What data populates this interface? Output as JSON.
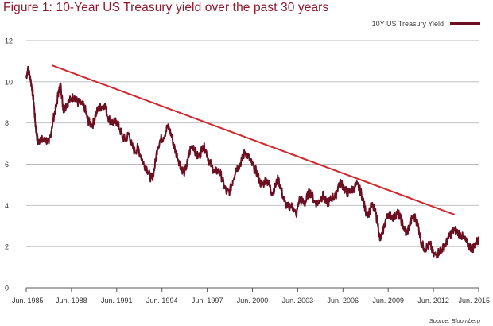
{
  "title": "Figure 1: 10-Year US Treasury yield over the past 30 years",
  "source": "Source: Bloomberg",
  "colors": {
    "series": "#6b0f21",
    "trend": "#d02a2f",
    "title": "#8a1c2e",
    "grid": "#b8b8b8"
  },
  "chart_data": {
    "type": "line",
    "title": "Figure 1: 10-Year US Treasury yield over the past 30 years",
    "xlabel": "",
    "ylabel": "",
    "ylim": [
      0,
      12
    ],
    "xlim": [
      1985.5,
      2015.5
    ],
    "yticks": [
      0,
      2,
      4,
      6,
      8,
      10,
      12
    ],
    "xticks": [
      {
        "x": 1985.5,
        "label": "Jun. 1985"
      },
      {
        "x": 1988.5,
        "label": "Jun. 1988"
      },
      {
        "x": 1991.5,
        "label": "Jun. 1991"
      },
      {
        "x": 1994.5,
        "label": "Jun. 1994"
      },
      {
        "x": 1997.5,
        "label": "Jun. 1997"
      },
      {
        "x": 2000.5,
        "label": "Jun. 2000"
      },
      {
        "x": 2003.5,
        "label": "Jun. 2003"
      },
      {
        "x": 2006.5,
        "label": "Jun. 2006"
      },
      {
        "x": 2009.5,
        "label": "Jun. 2009"
      },
      {
        "x": 2012.5,
        "label": "Jun. 2012"
      },
      {
        "x": 2015.5,
        "label": "Jun. 2015"
      }
    ],
    "grid": true,
    "legend": "top-right",
    "series": [
      {
        "name": "10Y US Treasury Yield",
        "x": [
          1985.5,
          1985.6,
          1985.75,
          1985.9,
          1986.0,
          1986.1,
          1986.2,
          1986.3,
          1986.45,
          1986.6,
          1986.8,
          1987.0,
          1987.2,
          1987.35,
          1987.5,
          1987.65,
          1987.8,
          1987.9,
          1988.0,
          1988.15,
          1988.3,
          1988.5,
          1988.7,
          1988.9,
          1989.0,
          1989.2,
          1989.4,
          1989.55,
          1989.7,
          1989.9,
          1990.1,
          1990.3,
          1990.5,
          1990.7,
          1990.9,
          1991.1,
          1991.3,
          1991.5,
          1991.7,
          1991.9,
          1992.1,
          1992.3,
          1992.5,
          1992.7,
          1992.9,
          1993.1,
          1993.3,
          1993.5,
          1993.7,
          1993.85,
          1994.0,
          1994.2,
          1994.4,
          1994.6,
          1994.85,
          1995.0,
          1995.2,
          1995.4,
          1995.6,
          1995.8,
          1996.0,
          1996.2,
          1996.4,
          1996.6,
          1996.8,
          1997.0,
          1997.2,
          1997.4,
          1997.6,
          1997.8,
          1998.0,
          1998.2,
          1998.4,
          1998.6,
          1998.8,
          1999.0,
          1999.2,
          1999.4,
          1999.6,
          1999.8,
          2000.0,
          2000.2,
          2000.4,
          2000.6,
          2000.8,
          2001.0,
          2001.2,
          2001.4,
          2001.6,
          2001.8,
          2002.0,
          2002.2,
          2002.4,
          2002.6,
          2002.8,
          2003.0,
          2003.2,
          2003.4,
          2003.6,
          2003.8,
          2004.0,
          2004.2,
          2004.4,
          2004.6,
          2004.8,
          2005.0,
          2005.2,
          2005.4,
          2005.6,
          2005.8,
          2006.0,
          2006.2,
          2006.4,
          2006.6,
          2006.8,
          2007.0,
          2007.2,
          2007.4,
          2007.6,
          2007.8,
          2008.0,
          2008.2,
          2008.4,
          2008.6,
          2008.8,
          2008.95,
          2009.1,
          2009.3,
          2009.5,
          2009.7,
          2009.9,
          2010.1,
          2010.3,
          2010.5,
          2010.7,
          2010.9,
          2011.1,
          2011.3,
          2011.5,
          2011.7,
          2011.9,
          2012.1,
          2012.3,
          2012.5,
          2012.7,
          2012.9,
          2013.1,
          2013.3,
          2013.5,
          2013.7,
          2013.9,
          2014.1,
          2014.3,
          2014.5,
          2014.7,
          2014.9,
          2015.1,
          2015.3,
          2015.5
        ],
        "values": [
          10.2,
          10.6,
          10.3,
          9.6,
          9.0,
          8.0,
          7.4,
          7.0,
          7.3,
          7.1,
          7.2,
          7.0,
          7.8,
          8.4,
          8.8,
          9.6,
          9.8,
          9.0,
          8.6,
          8.9,
          9.0,
          9.2,
          9.3,
          9.0,
          9.0,
          8.9,
          8.7,
          8.2,
          8.0,
          7.9,
          8.4,
          8.7,
          8.8,
          8.9,
          8.3,
          8.1,
          8.0,
          8.1,
          7.7,
          7.3,
          7.2,
          7.5,
          6.9,
          6.6,
          6.8,
          6.4,
          6.0,
          5.8,
          5.4,
          5.3,
          5.8,
          6.8,
          7.2,
          7.3,
          7.8,
          7.7,
          7.2,
          6.6,
          6.2,
          5.8,
          5.6,
          6.1,
          6.8,
          6.9,
          6.4,
          6.4,
          6.9,
          6.7,
          6.2,
          5.9,
          5.6,
          5.7,
          5.5,
          5.0,
          4.6,
          4.7,
          5.2,
          5.8,
          5.9,
          6.2,
          6.6,
          6.4,
          6.1,
          5.8,
          5.6,
          5.1,
          5.0,
          5.3,
          5.0,
          4.6,
          4.9,
          5.3,
          4.8,
          4.2,
          3.9,
          4.0,
          3.9,
          3.5,
          4.3,
          4.2,
          4.1,
          4.6,
          4.6,
          4.2,
          4.1,
          4.3,
          4.5,
          4.1,
          4.2,
          4.4,
          4.4,
          5.0,
          5.1,
          4.8,
          4.6,
          4.7,
          4.8,
          5.0,
          4.8,
          4.4,
          3.7,
          3.6,
          4.0,
          3.8,
          3.2,
          2.3,
          2.6,
          3.2,
          3.6,
          3.5,
          3.4,
          3.7,
          3.4,
          3.0,
          2.6,
          3.0,
          3.4,
          3.4,
          3.0,
          2.2,
          1.9,
          2.0,
          2.1,
          1.6,
          1.6,
          1.8,
          1.9,
          2.1,
          2.4,
          2.7,
          2.8,
          2.7,
          2.6,
          2.4,
          2.2,
          2.0,
          1.9,
          2.2,
          2.3
        ]
      }
    ],
    "trendline": {
      "x": [
        1987.2,
        2013.9
      ],
      "values": [
        10.8,
        3.55
      ]
    }
  }
}
